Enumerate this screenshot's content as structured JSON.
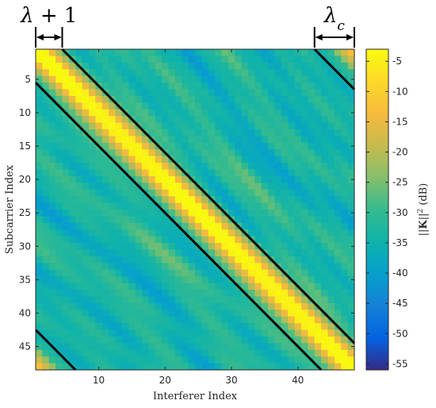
{
  "chart_data": {
    "type": "heatmap",
    "title": "",
    "xlabel": "Interferer Index",
    "ylabel": "Subcarrier Index",
    "xlim": [
      1,
      48
    ],
    "ylim": [
      1,
      48
    ],
    "y_direction": "top-to-bottom",
    "x_ticks": [
      10,
      20,
      30,
      40
    ],
    "y_ticks": [
      5,
      10,
      15,
      20,
      25,
      30,
      35,
      40,
      45
    ],
    "colorbar": {
      "label": "||K||² (dB)",
      "range": [
        -56,
        -3
      ],
      "ticks": [
        -5,
        -10,
        -15,
        -20,
        -25,
        -30,
        -35,
        -40,
        -45,
        -50,
        -55
      ],
      "colormap": "parula"
    },
    "pattern": {
      "description": "Toeplitz-like band: power is highest on the main diagonal (x = y) and decays with distance |x - y|",
      "peak_db": -3,
      "floor_db": -56
    },
    "boundary_lines": [
      {
        "from": [
          5,
          1
        ],
        "to": [
          48,
          44
        ]
      },
      {
        "from": [
          1,
          6
        ],
        "to": [
          43,
          48
        ]
      },
      {
        "from": [
          43,
          1
        ],
        "to": [
          48,
          6
        ]
      },
      {
        "from": [
          1,
          43
        ],
        "to": [
          6,
          48
        ]
      }
    ],
    "annotations": [
      {
        "text": "λ + 1",
        "span_x": [
          1,
          5
        ]
      },
      {
        "text": "λ_c",
        "span_x": [
          43,
          48
        ]
      }
    ]
  }
}
